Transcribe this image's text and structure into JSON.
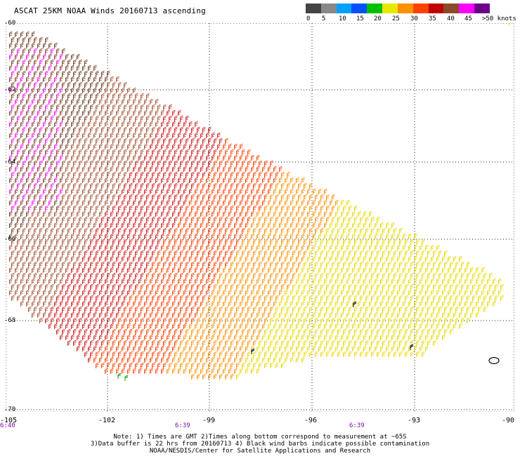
{
  "title": "ASCAT 25KM NOAA Winds 20160713 ascending",
  "legend": {
    "labels": [
      "0",
      "5",
      "10",
      "15",
      "20",
      "25",
      "30",
      "35",
      "40",
      "45",
      ">50 knots"
    ],
    "colors": [
      "#444444",
      "#888888",
      "#00a0ff",
      "#0050ff",
      "#00c000",
      "#e8e800",
      "#ff9000",
      "#ff4000",
      "#c00000",
      "#8a4a2a",
      "#ff00ff",
      "#6a008a"
    ]
  },
  "map": {
    "lat_labels": [
      "-60",
      "-62",
      "-64",
      "-66",
      "-68",
      "-70"
    ],
    "lon_labels": [
      "-105",
      "-102",
      "-99",
      "-96",
      "-93",
      "-90"
    ],
    "time_labels": [
      "6:40",
      "6:39",
      "6:39"
    ]
  },
  "notes": {
    "line1": "Note: 1) Times are GMT 2)Times along bottom correspond to measurement at ~65S",
    "line2": "3)Data buffer is 22 hrs from 20160713 4) Black wind barbs indicate possible contamination",
    "line3": "NOAA/NESDIS/Center for Satellite Applications and Research"
  }
}
